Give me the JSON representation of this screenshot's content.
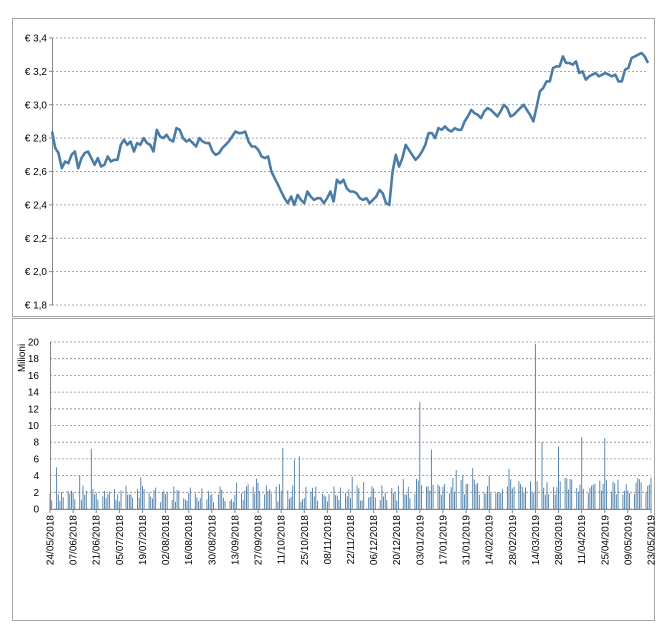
{
  "chart_data": [
    {
      "type": "line",
      "yunit": "€",
      "ylim": [
        1.8,
        3.4
      ],
      "yticks": [
        "€ 1,8",
        "€ 2,0",
        "€ 2,2",
        "€ 2,4",
        "€ 2,6",
        "€ 2,8",
        "€ 3,0",
        "€ 3,2",
        "€ 3,4"
      ],
      "grid": true,
      "color": "#4A7CA8",
      "x_range": [
        "2018-05-24",
        "2019-05-23"
      ],
      "series": [
        {
          "points": [
            [
              "2018-05-24",
              2.84
            ],
            [
              "2018-05-26",
              2.74
            ],
            [
              "2018-05-28",
              2.71
            ],
            [
              "2018-05-30",
              2.62
            ],
            [
              "2018-06-01",
              2.66
            ],
            [
              "2018-06-03",
              2.65
            ],
            [
              "2018-06-05",
              2.7
            ],
            [
              "2018-06-07",
              2.72
            ],
            [
              "2018-06-09",
              2.62
            ],
            [
              "2018-06-11",
              2.68
            ],
            [
              "2018-06-13",
              2.71
            ],
            [
              "2018-06-15",
              2.72
            ],
            [
              "2018-06-17",
              2.68
            ],
            [
              "2018-06-19",
              2.64
            ],
            [
              "2018-06-21",
              2.68
            ],
            [
              "2018-06-23",
              2.63
            ],
            [
              "2018-06-25",
              2.64
            ],
            [
              "2018-06-27",
              2.69
            ],
            [
              "2018-06-29",
              2.66
            ],
            [
              "2018-07-01",
              2.67
            ],
            [
              "2018-07-03",
              2.67
            ],
            [
              "2018-07-05",
              2.76
            ],
            [
              "2018-07-07",
              2.79
            ],
            [
              "2018-07-09",
              2.76
            ],
            [
              "2018-07-11",
              2.78
            ],
            [
              "2018-07-13",
              2.72
            ],
            [
              "2018-07-15",
              2.77
            ],
            [
              "2018-07-17",
              2.76
            ],
            [
              "2018-07-19",
              2.8
            ],
            [
              "2018-07-21",
              2.77
            ],
            [
              "2018-07-23",
              2.76
            ],
            [
              "2018-07-25",
              2.72
            ],
            [
              "2018-07-27",
              2.85
            ],
            [
              "2018-07-29",
              2.81
            ],
            [
              "2018-07-31",
              2.8
            ],
            [
              "2018-08-02",
              2.82
            ],
            [
              "2018-08-04",
              2.79
            ],
            [
              "2018-08-06",
              2.78
            ],
            [
              "2018-08-08",
              2.86
            ],
            [
              "2018-08-10",
              2.85
            ],
            [
              "2018-08-12",
              2.8
            ],
            [
              "2018-08-14",
              2.78
            ],
            [
              "2018-08-16",
              2.79
            ],
            [
              "2018-08-18",
              2.77
            ],
            [
              "2018-08-20",
              2.75
            ],
            [
              "2018-08-22",
              2.8
            ],
            [
              "2018-08-24",
              2.78
            ],
            [
              "2018-08-26",
              2.77
            ],
            [
              "2018-08-28",
              2.77
            ],
            [
              "2018-08-30",
              2.72
            ],
            [
              "2018-09-01",
              2.7
            ],
            [
              "2018-09-03",
              2.71
            ],
            [
              "2018-09-05",
              2.74
            ],
            [
              "2018-09-07",
              2.76
            ],
            [
              "2018-09-09",
              2.78
            ],
            [
              "2018-09-11",
              2.81
            ],
            [
              "2018-09-13",
              2.84
            ],
            [
              "2018-09-15",
              2.83
            ],
            [
              "2018-09-17",
              2.83
            ],
            [
              "2018-09-19",
              2.84
            ],
            [
              "2018-09-21",
              2.78
            ],
            [
              "2018-09-23",
              2.75
            ],
            [
              "2018-09-25",
              2.75
            ],
            [
              "2018-09-27",
              2.73
            ],
            [
              "2018-09-29",
              2.69
            ],
            [
              "2018-10-01",
              2.68
            ],
            [
              "2018-10-03",
              2.69
            ],
            [
              "2018-10-05",
              2.6
            ],
            [
              "2018-10-07",
              2.56
            ],
            [
              "2018-10-09",
              2.52
            ],
            [
              "2018-10-11",
              2.48
            ],
            [
              "2018-10-13",
              2.44
            ],
            [
              "2018-10-15",
              2.41
            ],
            [
              "2018-10-17",
              2.45
            ],
            [
              "2018-10-19",
              2.4
            ],
            [
              "2018-10-21",
              2.46
            ],
            [
              "2018-10-23",
              2.43
            ],
            [
              "2018-10-25",
              2.41
            ],
            [
              "2018-10-27",
              2.48
            ],
            [
              "2018-10-29",
              2.45
            ],
            [
              "2018-10-31",
              2.43
            ],
            [
              "2018-11-02",
              2.44
            ],
            [
              "2018-11-04",
              2.44
            ],
            [
              "2018-11-06",
              2.41
            ],
            [
              "2018-11-08",
              2.44
            ],
            [
              "2018-11-10",
              2.48
            ],
            [
              "2018-11-12",
              2.42
            ],
            [
              "2018-11-14",
              2.55
            ],
            [
              "2018-11-16",
              2.53
            ],
            [
              "2018-11-18",
              2.55
            ],
            [
              "2018-11-20",
              2.5
            ],
            [
              "2018-11-22",
              2.48
            ],
            [
              "2018-11-24",
              2.48
            ],
            [
              "2018-11-26",
              2.47
            ],
            [
              "2018-11-28",
              2.44
            ],
            [
              "2018-11-30",
              2.43
            ],
            [
              "2018-12-02",
              2.44
            ],
            [
              "2018-12-04",
              2.41
            ],
            [
              "2018-12-06",
              2.43
            ],
            [
              "2018-12-08",
              2.45
            ],
            [
              "2018-12-10",
              2.49
            ],
            [
              "2018-12-12",
              2.47
            ],
            [
              "2018-12-14",
              2.41
            ],
            [
              "2018-12-16",
              2.4
            ],
            [
              "2018-12-18",
              2.6
            ],
            [
              "2018-12-20",
              2.7
            ],
            [
              "2018-12-22",
              2.63
            ],
            [
              "2018-12-24",
              2.68
            ],
            [
              "2018-12-26",
              2.76
            ],
            [
              "2018-12-28",
              2.73
            ],
            [
              "2018-12-30",
              2.7
            ],
            [
              "2019-01-01",
              2.67
            ],
            [
              "2019-01-03",
              2.69
            ],
            [
              "2019-01-05",
              2.72
            ],
            [
              "2019-01-07",
              2.76
            ],
            [
              "2019-01-09",
              2.83
            ],
            [
              "2019-01-11",
              2.83
            ],
            [
              "2019-01-13",
              2.8
            ],
            [
              "2019-01-15",
              2.86
            ],
            [
              "2019-01-17",
              2.85
            ],
            [
              "2019-01-19",
              2.87
            ],
            [
              "2019-01-21",
              2.85
            ],
            [
              "2019-01-23",
              2.84
            ],
            [
              "2019-01-25",
              2.86
            ],
            [
              "2019-01-27",
              2.85
            ],
            [
              "2019-01-29",
              2.85
            ],
            [
              "2019-01-31",
              2.9
            ],
            [
              "2019-02-02",
              2.93
            ],
            [
              "2019-02-04",
              2.97
            ],
            [
              "2019-02-06",
              2.95
            ],
            [
              "2019-02-08",
              2.94
            ],
            [
              "2019-02-10",
              2.92
            ],
            [
              "2019-02-12",
              2.96
            ],
            [
              "2019-02-14",
              2.98
            ],
            [
              "2019-02-16",
              2.97
            ],
            [
              "2019-02-18",
              2.95
            ],
            [
              "2019-02-20",
              2.93
            ],
            [
              "2019-02-22",
              2.96
            ],
            [
              "2019-02-24",
              3.0
            ],
            [
              "2019-02-26",
              2.98
            ],
            [
              "2019-02-28",
              2.93
            ],
            [
              "2019-03-02",
              2.94
            ],
            [
              "2019-03-04",
              2.96
            ],
            [
              "2019-03-06",
              2.98
            ],
            [
              "2019-03-08",
              3.0
            ],
            [
              "2019-03-10",
              2.97
            ],
            [
              "2019-03-12",
              2.94
            ],
            [
              "2019-03-14",
              2.9
            ],
            [
              "2019-03-16",
              2.99
            ],
            [
              "2019-03-18",
              3.08
            ],
            [
              "2019-03-20",
              3.1
            ],
            [
              "2019-03-22",
              3.14
            ],
            [
              "2019-03-24",
              3.14
            ],
            [
              "2019-03-26",
              3.22
            ],
            [
              "2019-03-28",
              3.23
            ],
            [
              "2019-03-30",
              3.23
            ],
            [
              "2019-04-01",
              3.29
            ],
            [
              "2019-04-03",
              3.25
            ],
            [
              "2019-04-05",
              3.25
            ],
            [
              "2019-04-07",
              3.24
            ],
            [
              "2019-04-09",
              3.26
            ],
            [
              "2019-04-11",
              3.19
            ],
            [
              "2019-04-13",
              3.2
            ],
            [
              "2019-04-15",
              3.15
            ],
            [
              "2019-04-17",
              3.17
            ],
            [
              "2019-04-19",
              3.18
            ],
            [
              "2019-04-21",
              3.19
            ],
            [
              "2019-04-23",
              3.17
            ],
            [
              "2019-04-25",
              3.18
            ],
            [
              "2019-04-27",
              3.19
            ],
            [
              "2019-04-29",
              3.18
            ],
            [
              "2019-05-01",
              3.17
            ],
            [
              "2019-05-03",
              3.18
            ],
            [
              "2019-05-05",
              3.14
            ],
            [
              "2019-05-07",
              3.14
            ],
            [
              "2019-05-09",
              3.21
            ],
            [
              "2019-05-11",
              3.22
            ],
            [
              "2019-05-13",
              3.28
            ],
            [
              "2019-05-15",
              3.29
            ],
            [
              "2019-05-17",
              3.3
            ],
            [
              "2019-05-19",
              3.31
            ],
            [
              "2019-05-21",
              3.29
            ],
            [
              "2019-05-23",
              3.25
            ]
          ]
        }
      ]
    },
    {
      "type": "bar",
      "ylabel": "Milioni",
      "ylim": [
        0,
        20
      ],
      "yticks": [
        "0",
        "2",
        "4",
        "6",
        "8",
        "10",
        "12",
        "14",
        "16",
        "18",
        "20"
      ],
      "grid": true,
      "color": "#4A7CA8",
      "x_range": [
        "2018-05-24",
        "2019-05-23"
      ],
      "xticks": [
        "24/05/2018",
        "07/06/2018",
        "21/06/2018",
        "05/07/2018",
        "19/07/2018",
        "02/08/2018",
        "16/08/2018",
        "30/08/2018",
        "13/09/2018",
        "27/09/2018",
        "11/10/2018",
        "25/10/2018",
        "08/11/2018",
        "22/11/2018",
        "06/12/2018",
        "20/12/2018",
        "03/01/2019",
        "17/01/2019",
        "31/01/2019",
        "14/02/2019",
        "28/02/2019",
        "14/03/2019",
        "28/03/2019",
        "11/04/2019",
        "25/04/2019",
        "09/05/2019",
        "23/05/2019"
      ],
      "base_volume": 2.5,
      "spikes": [
        [
          "2018-05-28",
          5.0
        ],
        [
          "2018-06-18",
          7.2
        ],
        [
          "2018-07-22",
          5.1
        ],
        [
          "2018-10-12",
          7.3
        ],
        [
          "2018-10-19",
          5.9
        ],
        [
          "2018-10-22",
          6.3
        ],
        [
          "2019-01-03",
          12.8
        ],
        [
          "2019-01-10",
          7.1
        ],
        [
          "2019-02-04",
          4.9
        ],
        [
          "2019-02-26",
          4.8
        ],
        [
          "2019-03-14",
          19.8
        ],
        [
          "2019-03-18",
          8.0
        ],
        [
          "2019-03-28",
          7.5
        ],
        [
          "2019-04-11",
          8.6
        ],
        [
          "2019-04-25",
          8.5
        ]
      ]
    }
  ]
}
